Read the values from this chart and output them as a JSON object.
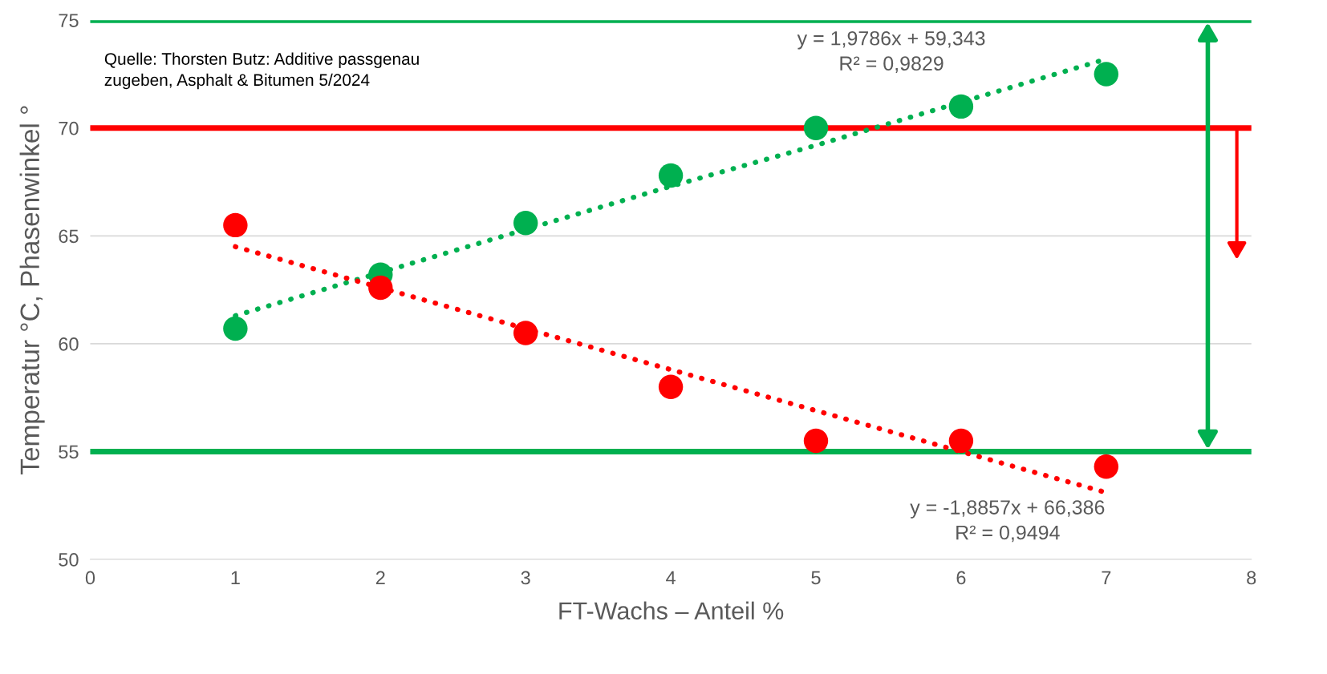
{
  "chart_data": {
    "type": "scatter",
    "xlabel": "FT-Wachs – Anteil %",
    "ylabel": "Temperatur °C, Phasenwinkel °",
    "xlim": [
      0,
      8
    ],
    "ylim": [
      50,
      75
    ],
    "xticks": [
      0,
      1,
      2,
      3,
      4,
      5,
      6,
      7,
      8
    ],
    "yticks": [
      50,
      55,
      60,
      65,
      70,
      75
    ],
    "grid": "y",
    "legend": false,
    "marker": "circle",
    "x": [
      1,
      2,
      3,
      4,
      5,
      6,
      7
    ],
    "series": [
      {
        "color": "#00b050",
        "values": [
          60.7,
          63.2,
          65.6,
          67.8,
          70.0,
          71.0,
          72.5
        ]
      },
      {
        "color": "#ff0000",
        "values": [
          65.5,
          62.6,
          60.5,
          58.0,
          55.5,
          55.5,
          54.3
        ]
      },
      {
        "type": "line",
        "line_style": "dotted",
        "marker": "none",
        "color": "#00b050",
        "values": [
          61.3,
          63.3,
          65.3,
          67.3,
          69.2,
          71.2,
          73.2
        ]
      },
      {
        "type": "line",
        "line_style": "dotted",
        "marker": "none",
        "color": "#ff0000",
        "values": [
          64.5,
          62.6,
          60.7,
          58.8,
          56.9,
          55.0,
          53.1
        ]
      }
    ],
    "ref_lines": [
      {
        "axis": "y",
        "value": 75,
        "color": "#00b050",
        "line_style": "solid"
      },
      {
        "axis": "y",
        "value": 55,
        "color": "#00b050",
        "line_style": "solid"
      },
      {
        "axis": "y",
        "value": 70,
        "color": "#ff0000",
        "line_style": "solid"
      }
    ],
    "annotations": [
      "Quelle: Thorsten Butz: Additive passgenau\nzugeben, Asphalt & Bitumen 5/2024",
      "y = 1,9786x + 59,343\nR² = 0,9829",
      "y = -1,8857x + 66,386\nR² = 0,9494"
    ]
  }
}
